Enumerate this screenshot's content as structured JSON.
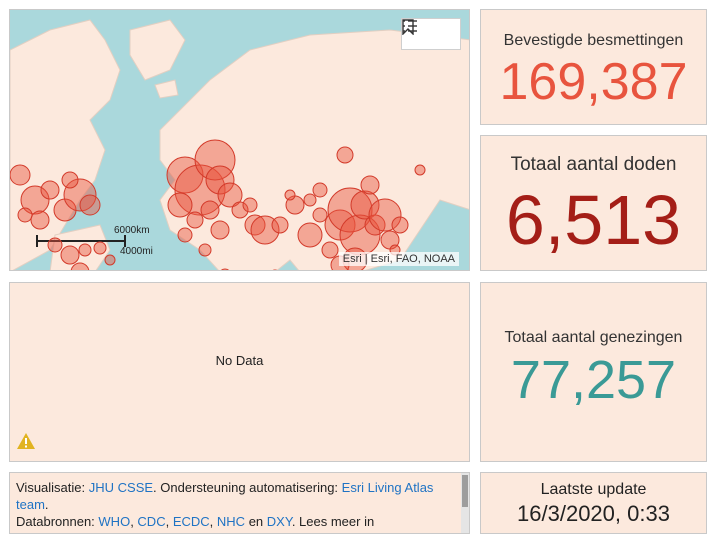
{
  "map": {
    "attribution": "Esri | Esri, FAO, NOAA",
    "scale_km": "6000km",
    "scale_mi": "4000mi",
    "colors": {
      "water": "#aad8dc",
      "land": "#fce9dd",
      "bubble": "#e8543e"
    },
    "tool_icons": [
      "bookmark-icon",
      "legend-list-icon"
    ]
  },
  "stats": {
    "confirmed": {
      "label": "Bevestigde besmettingen",
      "value": "169,387",
      "color": "#e8543e"
    },
    "deaths": {
      "label": "Totaal aantal doden",
      "value": "6,513",
      "color": "#a41e17"
    },
    "recovered": {
      "label": "Totaal aantal genezingen",
      "value": "77,257",
      "color": "#3a9a96"
    },
    "update": {
      "label": "Laatste update",
      "value": "16/3/2020, 0:33"
    }
  },
  "chart_panel": {
    "message": "No Data"
  },
  "info": {
    "l1_prefix": "Visualisatie: ",
    "l1_link1": "JHU CSSE",
    "l1_mid": ". Ondersteuning automatisering: ",
    "l1_link2": "Esri Living Atlas team",
    "l1_end": ".",
    "l2_prefix": "Databronnen: ",
    "src1": "WHO",
    "src2": "CDC",
    "src3": "ECDC",
    "src4": "NHC",
    "and": " en ",
    "src5": "DXY",
    "l2_end": ". Lees meer in",
    "sep": ", "
  }
}
